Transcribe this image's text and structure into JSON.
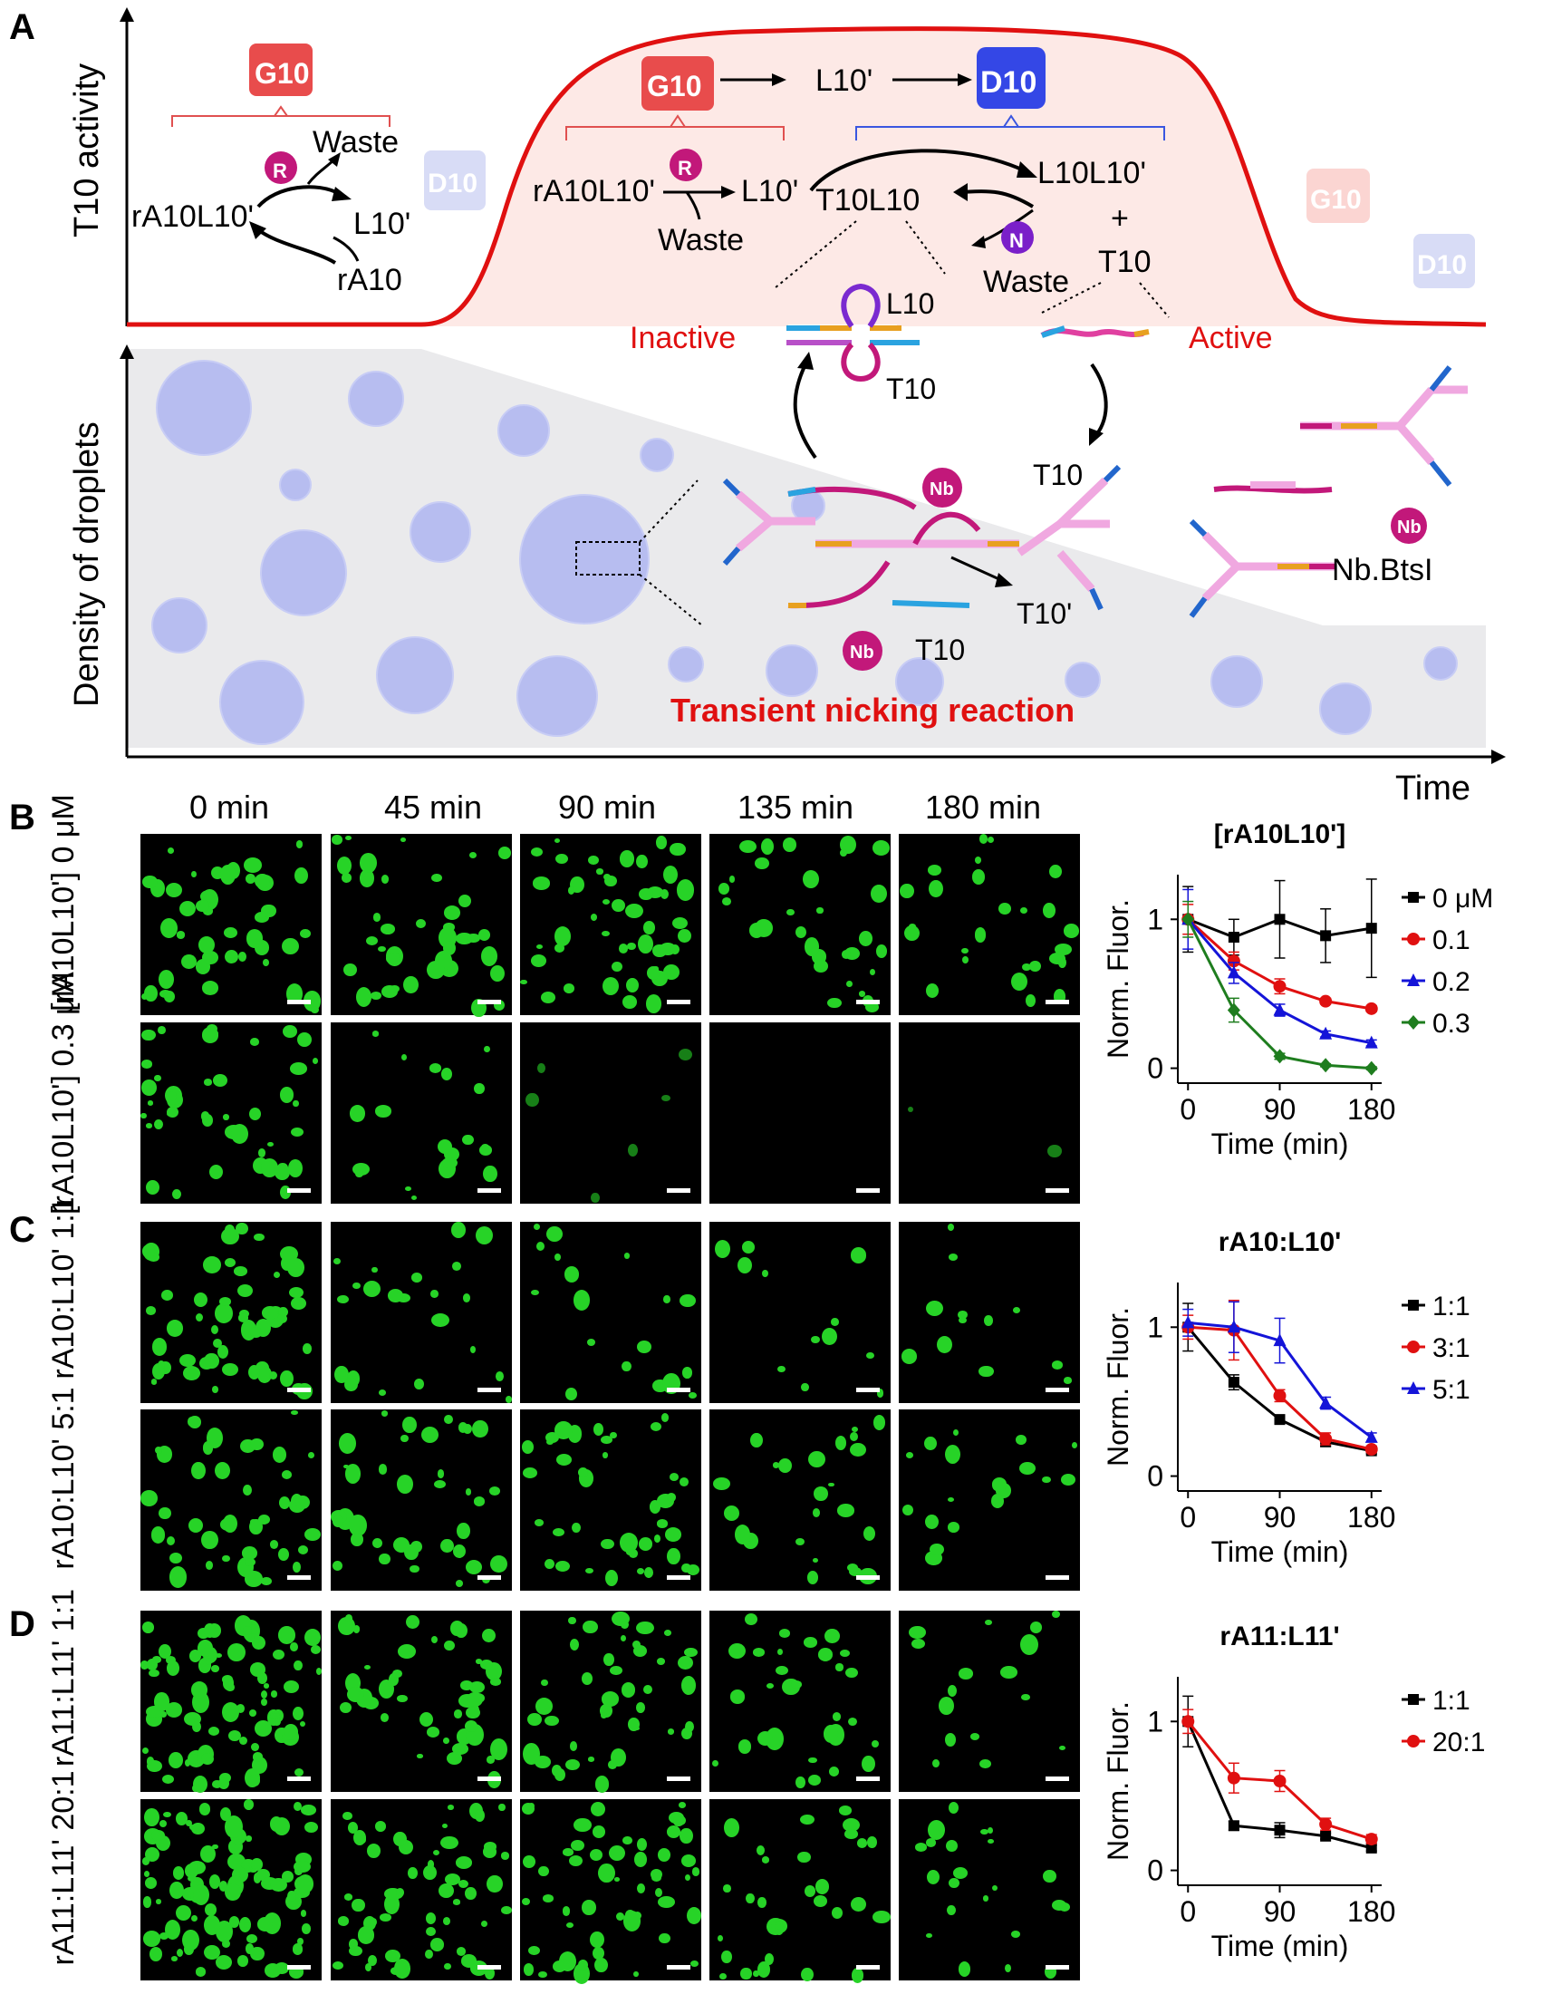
{
  "panel_a": {
    "letter": "A",
    "y_axis_top": "T10 activity",
    "y_axis_bottom": "Density of droplets",
    "x_axis": "Time",
    "g10_left": "G10",
    "waste_left": "Waste",
    "r_badge": "R",
    "ra10l10_left": "rA10L10'",
    "l10p_left": "L10'",
    "ra10_left": "rA10",
    "d10_faded_left": "D10",
    "g10_center": "G10",
    "arrow1": "→",
    "l10p_center": "L10'",
    "d10_center": "D10",
    "ra10l10_center": "rA10L10'",
    "l10p_center2": "L10'",
    "waste_center": "Waste",
    "t10l10": "T10L10",
    "l10l10p": "L10L10'",
    "plus": "+",
    "t10_right": "T10",
    "n_badge": "N",
    "waste_center2": "Waste",
    "g10_faded_right": "G10",
    "d10_faded_right": "D10",
    "inactive": "Inactive",
    "active": "Active",
    "l10_label": "L10",
    "t10_label": "T10",
    "nb_badge": "Nb",
    "t10_label2": "T10",
    "t10p_label": "T10'",
    "t10_label3": "T10",
    "nbbtsi": "Nb.BtsI",
    "transient": "Transient nicking reaction"
  },
  "panel_b": {
    "letter": "B",
    "col_heads": [
      "0 min",
      "45 min",
      "90 min",
      "135 min",
      "180 min"
    ],
    "row1_label": "[rA10L10'] 0 μM",
    "row2_label": "[rA10L10'] 0.3 μM"
  },
  "panel_c": {
    "letter": "C",
    "row1_label": "rA10:L10' 1:1",
    "row2_label": "rA10:L10' 5:1"
  },
  "panel_d": {
    "letter": "D",
    "row1_label": "rA11:L11' 1:1",
    "row2_label": "rA11:L11' 20:1"
  },
  "colors": {
    "red": "#e01010",
    "blue": "#1414d8",
    "green": "#1e7d1e",
    "black": "#000000",
    "droplet": "#b7bdf0",
    "fluor": "#27d327"
  },
  "chart_data": [
    {
      "type": "line",
      "title": "[rA10L10']",
      "xlabel": "Time (min)",
      "ylabel": "Norm. Fluor.",
      "x": [
        0,
        45,
        90,
        135,
        180
      ],
      "xticks": [
        0,
        90,
        180
      ],
      "yticks": [
        0,
        1
      ],
      "xlim": [
        -10,
        190
      ],
      "ylim": [
        -0.1,
        1.3
      ],
      "legend": "right",
      "series": [
        {
          "name": "0 μM",
          "color": "#000000",
          "marker": "square",
          "values": [
            1.0,
            0.88,
            1.0,
            0.89,
            0.94
          ],
          "err": [
            0.22,
            0.12,
            0.26,
            0.18,
            0.33
          ]
        },
        {
          "name": "0.1",
          "color": "#e01010",
          "marker": "circle",
          "values": [
            1.0,
            0.72,
            0.55,
            0.45,
            0.4
          ],
          "err": [
            0.1,
            0.06,
            0.05,
            0.02,
            0.02
          ]
        },
        {
          "name": "0.2",
          "color": "#1414d8",
          "marker": "triangle",
          "values": [
            1.0,
            0.64,
            0.39,
            0.23,
            0.17
          ],
          "err": [
            0.2,
            0.07,
            0.04,
            0.02,
            0.02
          ]
        },
        {
          "name": "0.3",
          "color": "#1e7d1e",
          "marker": "diamond",
          "values": [
            1.0,
            0.39,
            0.08,
            0.02,
            0.0
          ],
          "err": [
            0.12,
            0.08,
            0.02,
            0.01,
            0.01
          ]
        }
      ]
    },
    {
      "type": "line",
      "title": "rA10:L10'",
      "xlabel": "Time (min)",
      "ylabel": "Norm. Fluor.",
      "x": [
        0,
        45,
        90,
        135,
        180
      ],
      "xticks": [
        0,
        90,
        180
      ],
      "yticks": [
        0,
        1
      ],
      "xlim": [
        -10,
        190
      ],
      "ylim": [
        -0.1,
        1.3
      ],
      "legend": "right",
      "series": [
        {
          "name": "1:1",
          "color": "#000000",
          "marker": "square",
          "values": [
            1.0,
            0.63,
            0.38,
            0.23,
            0.17
          ],
          "err": [
            0.16,
            0.05,
            0.03,
            0.03,
            0.02
          ]
        },
        {
          "name": "3:1",
          "color": "#e01010",
          "marker": "circle",
          "values": [
            1.0,
            0.98,
            0.54,
            0.25,
            0.18
          ],
          "err": [
            0.08,
            0.2,
            0.04,
            0.04,
            0.02
          ]
        },
        {
          "name": "5:1",
          "color": "#1414d8",
          "marker": "triangle",
          "values": [
            1.03,
            1.0,
            0.91,
            0.49,
            0.26
          ],
          "err": [
            0.09,
            0.17,
            0.15,
            0.04,
            0.03
          ]
        }
      ]
    },
    {
      "type": "line",
      "title": "rA11:L11'",
      "xlabel": "Time (min)",
      "ylabel": "Norm. Fluor.",
      "x": [
        0,
        45,
        90,
        135,
        180
      ],
      "xticks": [
        0,
        90,
        180
      ],
      "yticks": [
        0,
        1
      ],
      "xlim": [
        -10,
        190
      ],
      "ylim": [
        -0.1,
        1.3
      ],
      "legend": "right",
      "series": [
        {
          "name": "1:1",
          "color": "#000000",
          "marker": "square",
          "values": [
            1.0,
            0.3,
            0.27,
            0.23,
            0.15
          ],
          "err": [
            0.17,
            0.03,
            0.05,
            0.02,
            0.02
          ]
        },
        {
          "name": "20:1",
          "color": "#e01010",
          "marker": "circle",
          "values": [
            1.0,
            0.62,
            0.6,
            0.31,
            0.21
          ],
          "err": [
            0.08,
            0.1,
            0.07,
            0.04,
            0.03
          ]
        }
      ]
    }
  ]
}
